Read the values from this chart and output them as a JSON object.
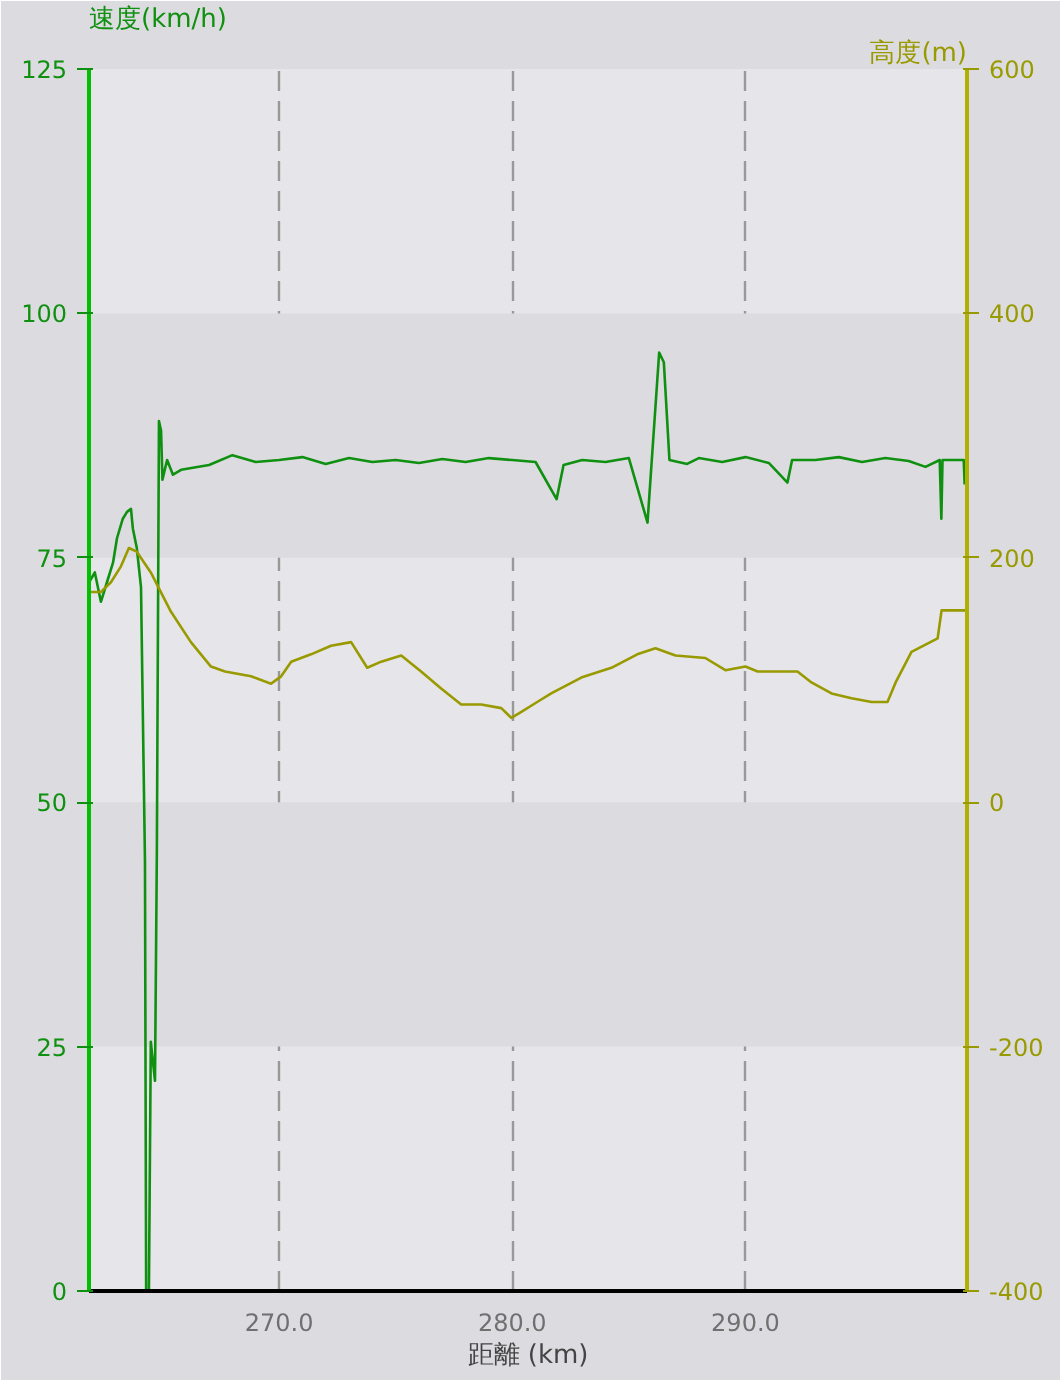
{
  "chart_data": {
    "type": "line",
    "xlabel": "距離 (km)",
    "ylabel": "速度(km/h)",
    "y2label": "高度(m)",
    "xlim": [
      261.85,
      299.5
    ],
    "xticks": [
      {
        "value": 270,
        "label": "270.0"
      },
      {
        "value": 280,
        "label": "280.0"
      },
      {
        "value": 290,
        "label": "290.0"
      }
    ],
    "ylim": [
      0,
      125
    ],
    "yticks": [
      0,
      25,
      50,
      75,
      100,
      125
    ],
    "y2lim": [
      -400,
      600
    ],
    "y2ticks": [
      -400,
      -200,
      0,
      200,
      400,
      600
    ],
    "grid": "x",
    "series": [
      {
        "color": "#109010",
        "x": [
          261.85,
          262.1,
          262.36,
          262.62,
          262.88,
          263.05,
          263.3,
          263.48,
          263.65,
          263.73,
          263.9,
          264.08,
          264.25,
          264.3,
          264.42,
          264.5,
          264.68,
          264.76,
          264.85,
          264.94,
          265.0,
          265.2,
          265.45,
          265.8,
          267,
          268,
          269,
          270,
          271,
          272,
          273,
          274,
          275,
          276,
          277,
          278,
          279,
          280,
          281,
          281.9,
          282.2,
          283,
          284,
          285,
          285.8,
          286.3,
          286.5,
          286.74,
          287.5,
          288,
          289,
          290,
          291,
          291.8,
          292,
          293,
          294,
          295,
          296,
          297,
          297.72,
          298.33,
          298.4,
          298.45,
          299.36,
          299.4
        ],
        "values": [
          72.5,
          73.5,
          70.5,
          72.5,
          74.5,
          77,
          79,
          79.7,
          80,
          78,
          76,
          72,
          44,
          0,
          0,
          25.5,
          21.5,
          45,
          89,
          88,
          83,
          85,
          83.5,
          84,
          84.5,
          85.5,
          84.8,
          85,
          85.3,
          84.6,
          85.2,
          84.8,
          85,
          84.7,
          85.1,
          84.8,
          85.2,
          85,
          84.8,
          81,
          84.5,
          85,
          84.8,
          85.2,
          78.6,
          96,
          95,
          85,
          84.6,
          85.2,
          84.8,
          85.3,
          84.7,
          82.7,
          85,
          85,
          85.3,
          84.8,
          85.2,
          84.9,
          84.3,
          85,
          79,
          85,
          85,
          82.5
        ]
      },
      {
        "color": "#999900",
        "axis": "y2",
        "x": [
          261.85,
          262.36,
          262.79,
          263.22,
          263.56,
          263.9,
          264.5,
          265.36,
          266.22,
          267.08,
          267.68,
          268.8,
          269.66,
          270.09,
          270.52,
          271.37,
          272.23,
          273.09,
          273.78,
          274.38,
          275.24,
          276.09,
          276.95,
          277.81,
          278.67,
          279.53,
          279.96,
          280.39,
          281.07,
          281.67,
          282.96,
          284.25,
          285.36,
          286.14,
          287.0,
          288.28,
          289.14,
          290.0,
          290.52,
          291.55,
          292.23,
          292.83,
          293.69,
          294.55,
          295.41,
          296.09,
          296.44,
          297.12,
          298.24,
          298.41,
          299.44
        ],
        "values": [
          172,
          172,
          180,
          193,
          208,
          205,
          188,
          156,
          131,
          111,
          107,
          103,
          97,
          103,
          115,
          121,
          128,
          131,
          110,
          115,
          120,
          107,
          93,
          80,
          80,
          77,
          69,
          74,
          82,
          89,
          102,
          110,
          121,
          126,
          120,
          118,
          108,
          111,
          107,
          107,
          107,
          98,
          89,
          85,
          82,
          82,
          98,
          123,
          134,
          157,
          157
        ]
      }
    ]
  }
}
